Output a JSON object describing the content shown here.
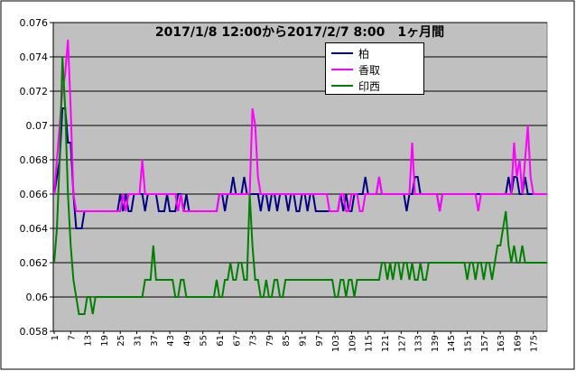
{
  "chart_data": {
    "type": "line",
    "title": "2017/1/8 12:00から2017/2/7 8:00　1ヶ月間",
    "x": [
      1,
      2,
      3,
      4,
      5,
      6,
      7,
      8,
      9,
      10,
      11,
      12,
      13,
      14,
      15,
      16,
      17,
      18,
      19,
      20,
      21,
      22,
      23,
      24,
      25,
      26,
      27,
      28,
      29,
      30,
      31,
      32,
      33,
      34,
      35,
      36,
      37,
      38,
      39,
      40,
      41,
      42,
      43,
      44,
      45,
      46,
      47,
      48,
      49,
      50,
      51,
      52,
      53,
      54,
      55,
      56,
      57,
      58,
      59,
      60,
      61,
      62,
      63,
      64,
      65,
      66,
      67,
      68,
      69,
      70,
      71,
      72,
      73,
      74,
      75,
      76,
      77,
      78,
      79,
      80,
      81,
      82,
      83,
      84,
      85,
      86,
      87,
      88,
      89,
      90,
      91,
      92,
      93,
      94,
      95,
      96,
      97,
      98,
      99,
      100,
      101,
      102,
      103,
      104,
      105,
      106,
      107,
      108,
      109,
      110,
      111,
      112,
      113,
      114,
      115,
      116,
      117,
      118,
      119,
      120,
      121,
      122,
      123,
      124,
      125,
      126,
      127,
      128,
      129,
      130,
      131,
      132,
      133,
      134,
      135,
      136,
      137,
      138,
      139,
      140,
      141,
      142,
      143,
      144,
      145,
      146,
      147,
      148,
      149,
      150,
      151,
      152,
      153,
      154,
      155,
      156,
      157,
      158,
      159,
      160,
      161,
      162,
      163,
      164,
      165,
      166,
      167,
      168,
      169,
      170,
      171,
      172,
      173,
      174,
      175,
      176,
      177,
      178,
      179,
      180
    ],
    "xlim": [
      1,
      180
    ],
    "xticks": [
      1,
      7,
      13,
      19,
      25,
      31,
      37,
      43,
      49,
      55,
      61,
      67,
      73,
      79,
      85,
      91,
      97,
      103,
      109,
      115,
      121,
      127,
      133,
      139,
      145,
      151,
      157,
      163,
      169,
      175
    ],
    "ylim": [
      0.058,
      0.076
    ],
    "yticks": [
      0.058,
      0.06,
      0.062,
      0.064,
      0.066,
      0.068,
      0.07,
      0.072,
      0.074,
      0.076
    ],
    "grid": true,
    "series": [
      {
        "name": "柏",
        "color": "#000080",
        "values": [
          0.066,
          0.067,
          0.068,
          0.071,
          0.071,
          0.069,
          0.069,
          0.066,
          0.064,
          0.064,
          0.064,
          0.065,
          0.065,
          0.065,
          0.065,
          0.065,
          0.065,
          0.065,
          0.065,
          0.065,
          0.065,
          0.065,
          0.065,
          0.065,
          0.066,
          0.065,
          0.066,
          0.065,
          0.065,
          0.066,
          0.066,
          0.066,
          0.066,
          0.065,
          0.066,
          0.066,
          0.066,
          0.066,
          0.065,
          0.065,
          0.065,
          0.066,
          0.065,
          0.065,
          0.065,
          0.066,
          0.066,
          0.065,
          0.066,
          0.065,
          0.065,
          0.065,
          0.065,
          0.065,
          0.065,
          0.065,
          0.065,
          0.065,
          0.065,
          0.065,
          0.066,
          0.066,
          0.065,
          0.066,
          0.066,
          0.067,
          0.066,
          0.066,
          0.066,
          0.067,
          0.066,
          0.066,
          0.066,
          0.066,
          0.066,
          0.065,
          0.066,
          0.066,
          0.065,
          0.066,
          0.066,
          0.065,
          0.066,
          0.066,
          0.066,
          0.065,
          0.066,
          0.066,
          0.065,
          0.065,
          0.066,
          0.066,
          0.065,
          0.066,
          0.066,
          0.065,
          0.065,
          0.065,
          0.065,
          0.065,
          0.065,
          0.065,
          0.065,
          0.065,
          0.066,
          0.065,
          0.066,
          0.065,
          0.065,
          0.066,
          0.066,
          0.066,
          0.066,
          0.067,
          0.066,
          0.066,
          0.066,
          0.066,
          0.067,
          0.066,
          0.066,
          0.066,
          0.066,
          0.066,
          0.066,
          0.066,
          0.066,
          0.066,
          0.065,
          0.066,
          0.066,
          0.067,
          0.067,
          0.066,
          0.066,
          0.066,
          0.066,
          0.066,
          0.066,
          0.066,
          0.065,
          0.066,
          0.066,
          0.066,
          0.066,
          0.066,
          0.066,
          0.066,
          0.066,
          0.066,
          0.066,
          0.066,
          0.066,
          0.066,
          0.066,
          0.066,
          0.066,
          0.066,
          0.066,
          0.066,
          0.066,
          0.066,
          0.066,
          0.066,
          0.066,
          0.067,
          0.066,
          0.067,
          0.067,
          0.066,
          0.066,
          0.067,
          0.066,
          0.066,
          0.066,
          0.066,
          0.066,
          0.066,
          0.066,
          0.066
        ]
      },
      {
        "name": "香取",
        "color": "#ff00ff",
        "values": [
          0.066,
          0.068,
          0.07,
          0.072,
          0.073,
          0.075,
          0.071,
          0.066,
          0.065,
          0.065,
          0.065,
          0.065,
          0.065,
          0.065,
          0.065,
          0.065,
          0.065,
          0.065,
          0.065,
          0.065,
          0.065,
          0.065,
          0.065,
          0.065,
          0.065,
          0.066,
          0.065,
          0.066,
          0.066,
          0.066,
          0.066,
          0.066,
          0.068,
          0.066,
          0.066,
          0.066,
          0.066,
          0.066,
          0.066,
          0.066,
          0.066,
          0.066,
          0.066,
          0.066,
          0.066,
          0.065,
          0.066,
          0.065,
          0.065,
          0.065,
          0.065,
          0.065,
          0.065,
          0.065,
          0.065,
          0.065,
          0.065,
          0.065,
          0.065,
          0.065,
          0.066,
          0.066,
          0.066,
          0.066,
          0.066,
          0.066,
          0.066,
          0.066,
          0.066,
          0.066,
          0.066,
          0.066,
          0.071,
          0.07,
          0.067,
          0.066,
          0.066,
          0.066,
          0.066,
          0.066,
          0.066,
          0.066,
          0.066,
          0.066,
          0.066,
          0.066,
          0.066,
          0.066,
          0.066,
          0.066,
          0.066,
          0.066,
          0.066,
          0.066,
          0.066,
          0.066,
          0.066,
          0.066,
          0.066,
          0.066,
          0.065,
          0.065,
          0.065,
          0.065,
          0.066,
          0.066,
          0.065,
          0.065,
          0.066,
          0.066,
          0.066,
          0.065,
          0.065,
          0.066,
          0.066,
          0.066,
          0.066,
          0.066,
          0.067,
          0.066,
          0.066,
          0.066,
          0.066,
          0.066,
          0.066,
          0.066,
          0.066,
          0.066,
          0.066,
          0.066,
          0.069,
          0.066,
          0.066,
          0.066,
          0.066,
          0.066,
          0.066,
          0.066,
          0.066,
          0.066,
          0.065,
          0.066,
          0.066,
          0.066,
          0.066,
          0.066,
          0.066,
          0.066,
          0.066,
          0.066,
          0.066,
          0.066,
          0.066,
          0.066,
          0.065,
          0.066,
          0.066,
          0.066,
          0.066,
          0.066,
          0.066,
          0.066,
          0.066,
          0.066,
          0.066,
          0.066,
          0.066,
          0.069,
          0.067,
          0.068,
          0.066,
          0.068,
          0.07,
          0.067,
          0.066,
          0.066,
          0.066,
          0.066,
          0.066,
          0.066
        ]
      },
      {
        "name": "印西",
        "color": "#008000",
        "values": [
          0.062,
          0.064,
          0.068,
          0.074,
          0.071,
          0.066,
          0.063,
          0.061,
          0.06,
          0.059,
          0.059,
          0.059,
          0.06,
          0.06,
          0.059,
          0.06,
          0.06,
          0.06,
          0.06,
          0.06,
          0.06,
          0.06,
          0.06,
          0.06,
          0.06,
          0.06,
          0.06,
          0.06,
          0.06,
          0.06,
          0.06,
          0.06,
          0.06,
          0.061,
          0.061,
          0.061,
          0.063,
          0.061,
          0.061,
          0.061,
          0.061,
          0.061,
          0.061,
          0.061,
          0.06,
          0.06,
          0.061,
          0.061,
          0.06,
          0.06,
          0.06,
          0.06,
          0.06,
          0.06,
          0.06,
          0.06,
          0.06,
          0.06,
          0.06,
          0.061,
          0.06,
          0.06,
          0.061,
          0.061,
          0.062,
          0.061,
          0.061,
          0.062,
          0.062,
          0.061,
          0.061,
          0.066,
          0.063,
          0.061,
          0.061,
          0.06,
          0.06,
          0.061,
          0.06,
          0.06,
          0.061,
          0.061,
          0.06,
          0.06,
          0.061,
          0.061,
          0.061,
          0.061,
          0.061,
          0.061,
          0.061,
          0.061,
          0.061,
          0.061,
          0.061,
          0.061,
          0.061,
          0.061,
          0.061,
          0.061,
          0.061,
          0.061,
          0.06,
          0.06,
          0.061,
          0.061,
          0.06,
          0.061,
          0.061,
          0.06,
          0.061,
          0.061,
          0.061,
          0.061,
          0.061,
          0.061,
          0.061,
          0.061,
          0.061,
          0.062,
          0.062,
          0.061,
          0.062,
          0.061,
          0.062,
          0.062,
          0.061,
          0.062,
          0.062,
          0.061,
          0.062,
          0.061,
          0.061,
          0.062,
          0.061,
          0.061,
          0.062,
          0.062,
          0.062,
          0.062,
          0.062,
          0.062,
          0.062,
          0.062,
          0.062,
          0.062,
          0.062,
          0.062,
          0.062,
          0.062,
          0.061,
          0.062,
          0.062,
          0.061,
          0.062,
          0.062,
          0.061,
          0.062,
          0.062,
          0.061,
          0.062,
          0.063,
          0.063,
          0.064,
          0.065,
          0.063,
          0.062,
          0.063,
          0.062,
          0.062,
          0.063,
          0.062,
          0.062,
          0.062,
          0.062,
          0.062,
          0.062,
          0.062,
          0.062,
          0.062
        ]
      }
    ]
  }
}
